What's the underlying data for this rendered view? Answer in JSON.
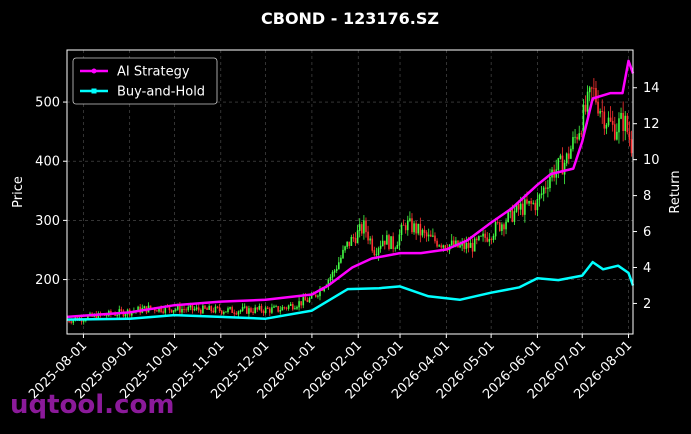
{
  "watermark": "uqtool.com",
  "chart_data": {
    "type": "line",
    "title": "CBOND - 123176.SZ",
    "xlabel": "",
    "ylabel": "Price",
    "y2label": "Return",
    "x_ticks": [
      "2025-08-01",
      "2025-09-01",
      "2025-10-01",
      "2025-11-01",
      "2025-12-01",
      "2026-01-01",
      "2026-02-01",
      "2026-03-01",
      "2026-04-01",
      "2026-05-01",
      "2026-06-01",
      "2026-07-01",
      "2026-08-01"
    ],
    "xlim": [
      "2025-07-21",
      "2026-08-04"
    ],
    "ylim": [
      108,
      588
    ],
    "y_ticks": [
      200,
      300,
      400,
      500
    ],
    "y2lim": [
      0.3,
      16.1
    ],
    "y2_ticks": [
      2,
      4,
      6,
      8,
      10,
      12,
      14
    ],
    "grid": true,
    "legend_position": "top-left",
    "colors": {
      "background": "#000000",
      "ai": "#ff00ff",
      "bh": "#00ffff",
      "up": "#44ff44",
      "down": "#ff3333",
      "grid": "#555555"
    },
    "price_series": {
      "name": "Price",
      "x": [
        "2025-07-21",
        "2025-08-15",
        "2025-09-15",
        "2025-10-10",
        "2025-11-10",
        "2025-12-10",
        "2026-01-01",
        "2026-01-15",
        "2026-01-25",
        "2026-02-05",
        "2026-02-12",
        "2026-02-18",
        "2026-02-25",
        "2026-03-05",
        "2026-03-12",
        "2026-03-20",
        "2026-04-01",
        "2026-04-10",
        "2026-04-20",
        "2026-05-01",
        "2026-05-10",
        "2026-05-20",
        "2026-06-01",
        "2026-06-10",
        "2026-06-20",
        "2026-07-01",
        "2026-07-08",
        "2026-07-15",
        "2026-07-22",
        "2026-07-29",
        "2026-08-04"
      ],
      "y": [
        132,
        140,
        152,
        150,
        148,
        150,
        168,
        210,
        260,
        290,
        250,
        270,
        258,
        295,
        285,
        270,
        260,
        255,
        258,
        280,
        300,
        320,
        330,
        380,
        400,
        470,
        520,
        480,
        455,
        470,
        420
      ]
    },
    "series": [
      {
        "name": "AI Strategy",
        "x": [
          "2025-07-21",
          "2025-09-01",
          "2025-10-01",
          "2025-11-01",
          "2025-12-01",
          "2026-01-01",
          "2026-01-12",
          "2026-01-28",
          "2026-02-10",
          "2026-03-01",
          "2026-03-15",
          "2026-04-01",
          "2026-04-15",
          "2026-05-01",
          "2026-05-15",
          "2026-06-01",
          "2026-06-10",
          "2026-06-25",
          "2026-07-01",
          "2026-07-08",
          "2026-07-20",
          "2026-07-28",
          "2026-08-01",
          "2026-08-04"
        ],
        "y": [
          1.25,
          1.5,
          1.9,
          2.1,
          2.2,
          2.5,
          3.0,
          4.0,
          4.5,
          4.8,
          4.8,
          5.0,
          5.5,
          6.5,
          7.3,
          8.6,
          9.2,
          9.5,
          11.0,
          13.4,
          13.7,
          13.7,
          15.5,
          14.8
        ]
      },
      {
        "name": "Buy-and-Hold",
        "x": [
          "2025-07-21",
          "2025-09-01",
          "2025-10-01",
          "2025-11-01",
          "2025-12-01",
          "2026-01-01",
          "2026-01-25",
          "2026-02-15",
          "2026-03-01",
          "2026-03-20",
          "2026-04-10",
          "2026-05-01",
          "2026-05-20",
          "2026-06-01",
          "2026-06-15",
          "2026-07-01",
          "2026-07-08",
          "2026-07-15",
          "2026-07-25",
          "2026-08-01",
          "2026-08-04"
        ],
        "y": [
          1.1,
          1.15,
          1.35,
          1.25,
          1.15,
          1.6,
          2.8,
          2.85,
          2.95,
          2.4,
          2.2,
          2.6,
          2.9,
          3.4,
          3.3,
          3.55,
          4.3,
          3.9,
          4.1,
          3.7,
          3.0
        ]
      }
    ]
  }
}
